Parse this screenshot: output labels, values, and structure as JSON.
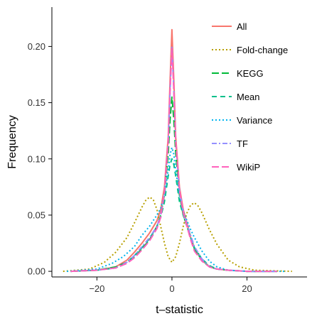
{
  "chart_data": {
    "type": "line",
    "title": "",
    "xlabel": "t–statistic",
    "ylabel": "Frequency",
    "xlim": [
      -32,
      36
    ],
    "ylim": [
      -0.005,
      0.235
    ],
    "x_ticks": [
      -20,
      0,
      20
    ],
    "x_tick_labels": [
      "−20",
      "0",
      "20"
    ],
    "y_ticks": [
      0.0,
      0.05,
      0.1,
      0.15,
      0.2
    ],
    "y_tick_labels": [
      "0.00",
      "0.05",
      "0.10",
      "0.15",
      "0.20"
    ],
    "grid": false,
    "legend_position": "top-right",
    "series": [
      {
        "name": "All",
        "color": "#F8766D",
        "dash": "solid",
        "points": [
          [
            -27,
            0
          ],
          [
            -20,
            0.001
          ],
          [
            -15,
            0.004
          ],
          [
            -12,
            0.01
          ],
          [
            -10,
            0.017
          ],
          [
            -8,
            0.025
          ],
          [
            -6,
            0.034
          ],
          [
            -4,
            0.045
          ],
          [
            -3,
            0.055
          ],
          [
            -2,
            0.075
          ],
          [
            -1,
            0.12
          ],
          [
            -0.5,
            0.17
          ],
          [
            0,
            0.215
          ],
          [
            0.5,
            0.17
          ],
          [
            1,
            0.12
          ],
          [
            2,
            0.075
          ],
          [
            3,
            0.055
          ],
          [
            4,
            0.043
          ],
          [
            5,
            0.03
          ],
          [
            6,
            0.02
          ],
          [
            8,
            0.01
          ],
          [
            10,
            0.004
          ],
          [
            12,
            0.002
          ],
          [
            15,
            0.001
          ],
          [
            20,
            0
          ],
          [
            28,
            0
          ]
        ]
      },
      {
        "name": "Fold-change",
        "color": "#B79F00",
        "dash": "dotted",
        "points": [
          [
            -29,
            0
          ],
          [
            -22,
            0.002
          ],
          [
            -18,
            0.008
          ],
          [
            -15,
            0.017
          ],
          [
            -12,
            0.03
          ],
          [
            -10,
            0.043
          ],
          [
            -8,
            0.057
          ],
          [
            -7,
            0.063
          ],
          [
            -6,
            0.066
          ],
          [
            -5,
            0.064
          ],
          [
            -4,
            0.055
          ],
          [
            -3,
            0.04
          ],
          [
            -2,
            0.025
          ],
          [
            -1,
            0.013
          ],
          [
            0,
            0.008
          ],
          [
            1,
            0.013
          ],
          [
            2,
            0.025
          ],
          [
            3,
            0.04
          ],
          [
            4,
            0.052
          ],
          [
            5,
            0.059
          ],
          [
            6,
            0.061
          ],
          [
            7,
            0.058
          ],
          [
            8,
            0.052
          ],
          [
            10,
            0.037
          ],
          [
            12,
            0.024
          ],
          [
            15,
            0.01
          ],
          [
            18,
            0.004
          ],
          [
            22,
            0.001
          ],
          [
            32,
            0
          ]
        ]
      },
      {
        "name": "KEGG",
        "color": "#00BA38",
        "dash": "longdash",
        "points": [
          [
            -27,
            0
          ],
          [
            -20,
            0.001
          ],
          [
            -15,
            0.004
          ],
          [
            -12,
            0.008
          ],
          [
            -10,
            0.013
          ],
          [
            -8,
            0.02
          ],
          [
            -6,
            0.028
          ],
          [
            -4,
            0.04
          ],
          [
            -3,
            0.05
          ],
          [
            -2,
            0.068
          ],
          [
            -1,
            0.105
          ],
          [
            -0.5,
            0.135
          ],
          [
            0,
            0.155
          ],
          [
            0.5,
            0.135
          ],
          [
            1,
            0.105
          ],
          [
            2,
            0.068
          ],
          [
            3,
            0.05
          ],
          [
            4,
            0.04
          ],
          [
            5,
            0.03
          ],
          [
            6,
            0.02
          ],
          [
            8,
            0.01
          ],
          [
            10,
            0.004
          ],
          [
            12,
            0.002
          ],
          [
            15,
            0.001
          ],
          [
            20,
            0
          ],
          [
            28,
            0
          ]
        ]
      },
      {
        "name": "Mean",
        "color": "#00C08B",
        "dash": "dashed",
        "points": [
          [
            -27,
            0
          ],
          [
            -20,
            0.001
          ],
          [
            -15,
            0.003
          ],
          [
            -12,
            0.008
          ],
          [
            -10,
            0.014
          ],
          [
            -8,
            0.021
          ],
          [
            -6,
            0.029
          ],
          [
            -4,
            0.04
          ],
          [
            -3,
            0.048
          ],
          [
            -2,
            0.062
          ],
          [
            -1,
            0.085
          ],
          [
            -0.5,
            0.095
          ],
          [
            0,
            0.1
          ],
          [
            0.5,
            0.095
          ],
          [
            1,
            0.085
          ],
          [
            2,
            0.062
          ],
          [
            3,
            0.05
          ],
          [
            4,
            0.04
          ],
          [
            5,
            0.03
          ],
          [
            6,
            0.021
          ],
          [
            8,
            0.011
          ],
          [
            10,
            0.005
          ],
          [
            12,
            0.002
          ],
          [
            15,
            0.001
          ],
          [
            20,
            0
          ],
          [
            28,
            0
          ]
        ]
      },
      {
        "name": "Variance",
        "color": "#00B4EF",
        "dash": "dotted",
        "points": [
          [
            -28,
            0
          ],
          [
            -20,
            0.002
          ],
          [
            -16,
            0.007
          ],
          [
            -13,
            0.013
          ],
          [
            -10,
            0.022
          ],
          [
            -8,
            0.032
          ],
          [
            -6,
            0.04
          ],
          [
            -5,
            0.045
          ],
          [
            -4,
            0.05
          ],
          [
            -3,
            0.056
          ],
          [
            -2,
            0.068
          ],
          [
            -1,
            0.09
          ],
          [
            -0.5,
            0.104
          ],
          [
            0,
            0.11
          ],
          [
            0.5,
            0.104
          ],
          [
            1,
            0.09
          ],
          [
            2,
            0.068
          ],
          [
            3,
            0.053
          ],
          [
            4,
            0.045
          ],
          [
            5,
            0.037
          ],
          [
            6,
            0.03
          ],
          [
            8,
            0.018
          ],
          [
            10,
            0.009
          ],
          [
            12,
            0.004
          ],
          [
            15,
            0.001
          ],
          [
            20,
            0
          ],
          [
            30,
            0
          ]
        ]
      },
      {
        "name": "TF",
        "color": "#9590FF",
        "dash": "dashdot",
        "points": [
          [
            -27,
            0
          ],
          [
            -20,
            0.001
          ],
          [
            -15,
            0.003
          ],
          [
            -12,
            0.008
          ],
          [
            -10,
            0.014
          ],
          [
            -8,
            0.022
          ],
          [
            -6,
            0.03
          ],
          [
            -4,
            0.04
          ],
          [
            -3,
            0.05
          ],
          [
            -2,
            0.07
          ],
          [
            -1,
            0.115
          ],
          [
            -0.5,
            0.16
          ],
          [
            0,
            0.2
          ],
          [
            0.5,
            0.16
          ],
          [
            1,
            0.115
          ],
          [
            2,
            0.072
          ],
          [
            3,
            0.053
          ],
          [
            4,
            0.042
          ],
          [
            5,
            0.032
          ],
          [
            6,
            0.022
          ],
          [
            8,
            0.011
          ],
          [
            10,
            0.004
          ],
          [
            12,
            0.002
          ],
          [
            15,
            0.001
          ],
          [
            20,
            0
          ],
          [
            28,
            0
          ]
        ]
      },
      {
        "name": "WikiP",
        "color": "#FF62BC",
        "dash": "longdash",
        "points": [
          [
            -27,
            0
          ],
          [
            -20,
            0.001
          ],
          [
            -15,
            0.003
          ],
          [
            -12,
            0.007
          ],
          [
            -10,
            0.012
          ],
          [
            -8,
            0.019
          ],
          [
            -6,
            0.027
          ],
          [
            -4,
            0.038
          ],
          [
            -3,
            0.048
          ],
          [
            -2,
            0.07
          ],
          [
            -1,
            0.115
          ],
          [
            -0.5,
            0.16
          ],
          [
            0,
            0.198
          ],
          [
            0.5,
            0.16
          ],
          [
            1,
            0.115
          ],
          [
            2,
            0.072
          ],
          [
            3,
            0.052
          ],
          [
            4,
            0.04
          ],
          [
            5,
            0.028
          ],
          [
            6,
            0.018
          ],
          [
            8,
            0.009
          ],
          [
            10,
            0.004
          ],
          [
            12,
            0.002
          ],
          [
            15,
            0.001
          ],
          [
            20,
            0
          ],
          [
            28,
            0
          ]
        ]
      }
    ]
  }
}
